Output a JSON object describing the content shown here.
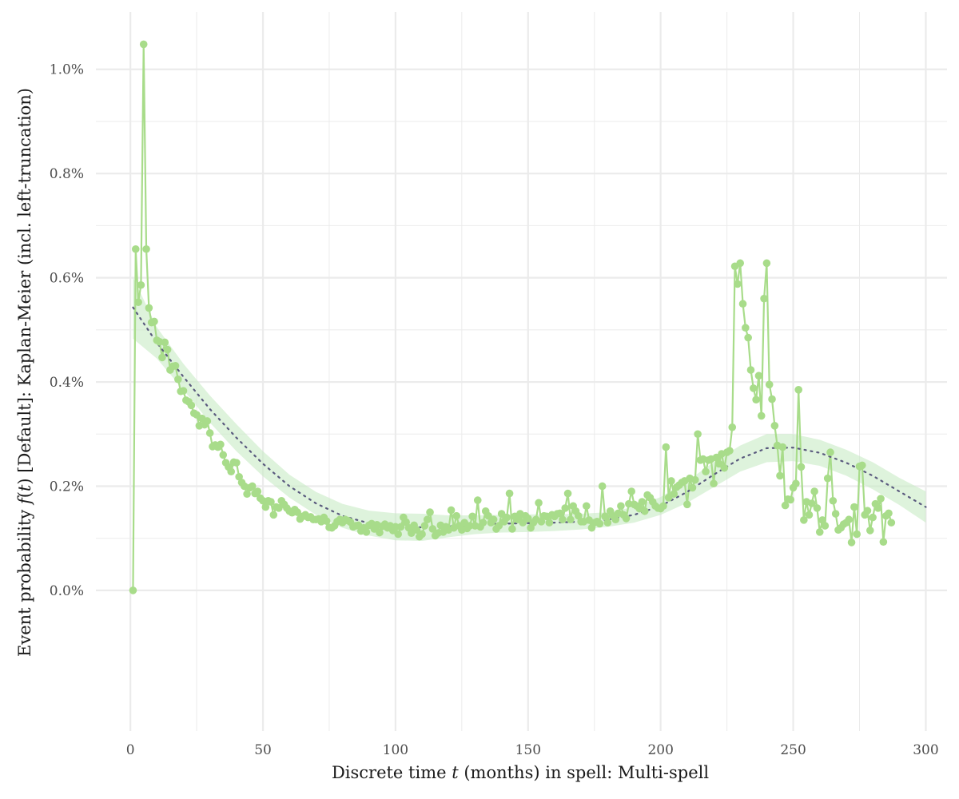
{
  "chart_data": {
    "type": "line",
    "xlabel": {
      "before": "Discrete time ",
      "var": "t",
      "after": " (months) in spell: Multi-spell"
    },
    "ylabel": {
      "before": "Event probability ",
      "func": "f",
      "open": "(",
      "var": "t",
      "close": ")",
      "after": " [Default]:  Kaplan-Meier (incl. left-truncation)"
    },
    "xlim": [
      -13,
      308
    ],
    "ylim": [
      -0.27,
      1.11
    ],
    "x_ticks": [
      0,
      50,
      100,
      150,
      200,
      250,
      300
    ],
    "x_tick_labels": [
      "0",
      "50",
      "100",
      "150",
      "200",
      "250",
      "300"
    ],
    "y_ticks": [
      0.0,
      0.2,
      0.4,
      0.6,
      0.8,
      1.0
    ],
    "y_tick_labels": [
      "0.0%",
      "0.2%",
      "0.4%",
      "0.6%",
      "0.8%",
      "1.0%"
    ],
    "grid": true,
    "legend": "none",
    "colors": {
      "series": "#a8dc8a",
      "trend": "#5a5a7e",
      "band": "#c8ebc5",
      "grid": "#ebebeb"
    },
    "series": [
      {
        "style": "points-and-lines",
        "x_start": 1,
        "x_step": 1,
        "values": [
          0.0,
          0.655,
          0.553,
          0.586,
          1.048,
          0.655,
          0.542,
          0.514,
          0.516,
          0.48,
          0.477,
          0.447,
          0.476,
          0.462,
          0.423,
          0.43,
          0.431,
          0.405,
          0.382,
          0.383,
          0.365,
          0.362,
          0.355,
          0.34,
          0.337,
          0.316,
          0.33,
          0.318,
          0.325,
          0.302,
          0.276,
          0.279,
          0.275,
          0.28,
          0.26,
          0.245,
          0.237,
          0.228,
          0.246,
          0.245,
          0.218,
          0.207,
          0.2,
          0.185,
          0.197,
          0.2,
          0.186,
          0.19,
          0.177,
          0.172,
          0.16,
          0.172,
          0.17,
          0.145,
          0.16,
          0.158,
          0.172,
          0.165,
          0.158,
          0.152,
          0.149,
          0.155,
          0.15,
          0.137,
          0.142,
          0.145,
          0.14,
          0.141,
          0.136,
          0.136,
          0.137,
          0.132,
          0.14,
          0.133,
          0.121,
          0.12,
          0.124,
          0.132,
          0.136,
          0.13,
          0.136,
          0.134,
          0.131,
          0.122,
          0.124,
          0.125,
          0.114,
          0.12,
          0.112,
          0.125,
          0.128,
          0.118,
          0.126,
          0.111,
          0.123,
          0.127,
          0.12,
          0.124,
          0.115,
          0.122,
          0.108,
          0.122,
          0.14,
          0.131,
          0.12,
          0.11,
          0.125,
          0.116,
          0.103,
          0.108,
          0.124,
          0.136,
          0.15,
          0.118,
          0.105,
          0.11,
          0.125,
          0.112,
          0.122,
          0.116,
          0.154,
          0.12,
          0.143,
          0.124,
          0.116,
          0.13,
          0.119,
          0.124,
          0.142,
          0.124,
          0.173,
          0.122,
          0.13,
          0.152,
          0.143,
          0.13,
          0.136,
          0.118,
          0.124,
          0.147,
          0.132,
          0.14,
          0.186,
          0.118,
          0.142,
          0.136,
          0.147,
          0.13,
          0.143,
          0.138,
          0.12,
          0.13,
          0.136,
          0.168,
          0.132,
          0.143,
          0.142,
          0.13,
          0.145,
          0.142,
          0.147,
          0.148,
          0.136,
          0.158,
          0.186,
          0.136,
          0.162,
          0.152,
          0.143,
          0.132,
          0.132,
          0.162,
          0.135,
          0.12,
          0.13,
          0.132,
          0.128,
          0.2,
          0.142,
          0.13,
          0.152,
          0.143,
          0.136,
          0.148,
          0.162,
          0.145,
          0.138,
          0.166,
          0.19,
          0.165,
          0.162,
          0.157,
          0.17,
          0.152,
          0.183,
          0.178,
          0.17,
          0.162,
          0.158,
          0.157,
          0.162,
          0.275,
          0.178,
          0.21,
          0.185,
          0.198,
          0.202,
          0.207,
          0.21,
          0.165,
          0.215,
          0.197,
          0.212,
          0.3,
          0.25,
          0.252,
          0.228,
          0.25,
          0.252,
          0.205,
          0.255,
          0.243,
          0.262,
          0.235,
          0.265,
          0.268,
          0.313,
          0.622,
          0.588,
          0.628,
          0.55,
          0.504,
          0.485,
          0.423,
          0.388,
          0.366,
          0.412,
          0.335,
          0.56,
          0.628,
          0.395,
          0.367,
          0.316,
          0.278,
          0.22,
          0.275,
          0.163,
          0.175,
          0.174,
          0.197,
          0.205,
          0.385,
          0.237,
          0.135,
          0.17,
          0.145,
          0.167,
          0.19,
          0.158,
          0.112,
          0.135,
          0.124,
          0.215,
          0.265,
          0.172,
          0.147,
          0.116,
          0.12,
          0.127,
          0.13,
          0.136,
          0.092,
          0.16,
          0.108,
          0.238,
          0.24,
          0.145,
          0.153,
          0.115,
          0.14,
          0.166,
          0.158,
          0.176,
          0.093,
          0.143,
          0.148,
          0.13
        ]
      },
      {
        "style": "dotted-trend-with-band",
        "knots_x": [
          1,
          10,
          20,
          30,
          40,
          50,
          60,
          70,
          80,
          90,
          100,
          110,
          120,
          130,
          140,
          150,
          160,
          170,
          180,
          190,
          200,
          210,
          220,
          230,
          240,
          250,
          260,
          270,
          280,
          290,
          300
        ],
        "fit": [
          0.543,
          0.475,
          0.41,
          0.348,
          0.293,
          0.243,
          0.2,
          0.167,
          0.143,
          0.129,
          0.122,
          0.121,
          0.123,
          0.126,
          0.128,
          0.129,
          0.13,
          0.132,
          0.136,
          0.145,
          0.162,
          0.189,
          0.222,
          0.253,
          0.273,
          0.274,
          0.264,
          0.245,
          0.22,
          0.19,
          0.16
        ],
        "band_lower": [
          0.483,
          0.445,
          0.385,
          0.322,
          0.267,
          0.219,
          0.178,
          0.145,
          0.12,
          0.105,
          0.096,
          0.095,
          0.102,
          0.108,
          0.111,
          0.112,
          0.114,
          0.117,
          0.122,
          0.13,
          0.145,
          0.168,
          0.198,
          0.228,
          0.246,
          0.248,
          0.239,
          0.22,
          0.194,
          0.164,
          0.13
        ],
        "band_upper": [
          0.601,
          0.505,
          0.435,
          0.374,
          0.319,
          0.267,
          0.222,
          0.189,
          0.166,
          0.153,
          0.148,
          0.147,
          0.144,
          0.144,
          0.145,
          0.146,
          0.146,
          0.147,
          0.15,
          0.16,
          0.179,
          0.21,
          0.246,
          0.278,
          0.3,
          0.3,
          0.289,
          0.27,
          0.246,
          0.216,
          0.19
        ]
      }
    ]
  }
}
